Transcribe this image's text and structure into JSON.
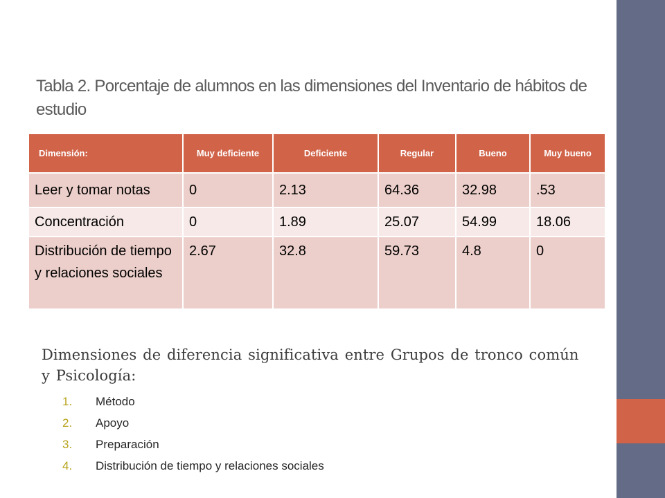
{
  "slide": {
    "title": "Tabla 2. Porcentaje de  alumnos en las dimensiones del Inventario de hábitos de estudio",
    "accent_colors": {
      "sidebar": "#646b86",
      "accent": "#d16349",
      "header": "#d16349",
      "row_dark": "#eccfca",
      "row_light": "#f6e9e7",
      "list_number": "#b7a21a"
    }
  },
  "table": {
    "headers": [
      "Dimensión:",
      "Muy deficiente",
      "Deficiente",
      "Regular",
      "Bueno",
      "Muy bueno"
    ],
    "rows": [
      [
        "Leer y tomar notas",
        "0",
        "2.13",
        "64.36",
        "32.98",
        ".53"
      ],
      [
        "Concentración",
        "0",
        "1.89",
        "25.07",
        "54.99",
        "18.06"
      ],
      [
        "Distribución de tiempo y relaciones sociales",
        "2.67",
        "32.8",
        "59.73",
        "4.8",
        "0"
      ]
    ]
  },
  "subtitle": "Dimensiones de diferencia significativa entre Grupos de tronco común y Psicología:",
  "list": [
    {
      "num": "1.",
      "text": "Método"
    },
    {
      "num": "2.",
      "text": "Apoyo"
    },
    {
      "num": "3.",
      "text": "Preparación"
    },
    {
      "num": "4.",
      "text": "Distribución de tiempo y relaciones sociales"
    }
  ]
}
